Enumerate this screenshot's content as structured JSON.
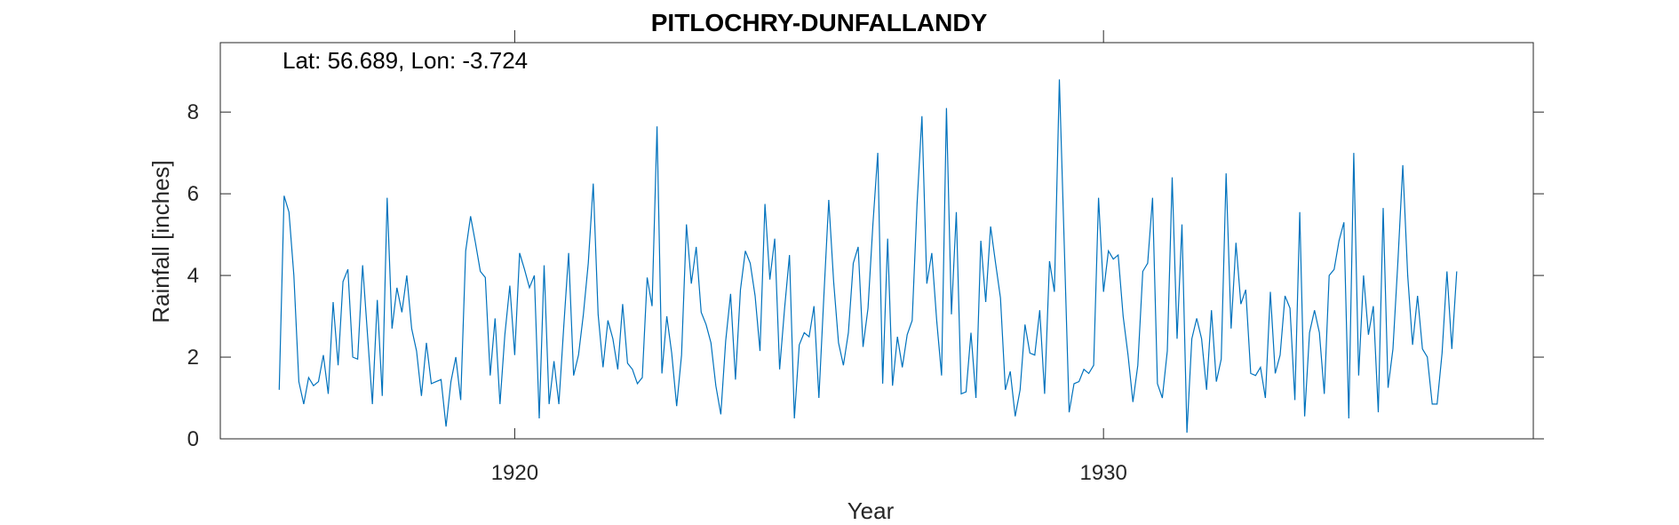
{
  "chart_data": {
    "type": "line",
    "title": "PITLOCHRY-DUNFALLANDY",
    "annotation": "Lat: 56.689, Lon: -3.724",
    "xlabel": "Year",
    "ylabel": "Rainfall [inches]",
    "xlim": [
      1915,
      1937.3
    ],
    "ylim": [
      0,
      9.7
    ],
    "x_ticks": [
      1920,
      1930
    ],
    "y_ticks": [
      0,
      2,
      4,
      6,
      8
    ],
    "x_start": "1916-01",
    "x_step_months": 1,
    "grid": false,
    "line_color": "#0072BD",
    "series": [
      {
        "values": [
          1.2,
          5.95,
          5.55,
          4.0,
          1.4,
          0.85,
          1.5,
          1.3,
          1.4,
          2.05,
          1.1,
          3.35,
          1.8,
          3.85,
          4.15,
          2.0,
          1.95,
          4.25,
          2.55,
          0.85,
          3.4,
          1.05,
          5.9,
          2.7,
          3.7,
          3.1,
          4.0,
          2.7,
          2.15,
          1.05,
          2.35,
          1.35,
          1.4,
          1.45,
          0.3,
          1.4,
          2.0,
          0.95,
          4.6,
          5.45,
          4.8,
          4.1,
          3.95,
          1.55,
          2.95,
          0.85,
          2.55,
          3.75,
          2.05,
          4.55,
          4.15,
          3.7,
          4.0,
          0.5,
          4.25,
          0.85,
          1.9,
          0.85,
          2.75,
          4.55,
          1.55,
          2.05,
          3.05,
          4.3,
          6.25,
          3.05,
          1.75,
          2.9,
          2.45,
          1.7,
          3.3,
          1.85,
          1.7,
          1.35,
          1.5,
          3.95,
          3.25,
          7.65,
          1.6,
          3.0,
          2.1,
          0.8,
          2.05,
          5.25,
          3.8,
          4.7,
          3.1,
          2.8,
          2.35,
          1.3,
          0.6,
          2.4,
          3.55,
          1.45,
          3.65,
          4.6,
          4.3,
          3.5,
          2.15,
          5.75,
          3.9,
          4.9,
          1.7,
          3.2,
          4.5,
          0.5,
          2.3,
          2.6,
          2.5,
          3.25,
          1.0,
          3.45,
          5.85,
          3.85,
          2.35,
          1.8,
          2.6,
          4.3,
          4.7,
          2.25,
          3.2,
          5.25,
          7.0,
          1.35,
          4.9,
          1.3,
          2.5,
          1.75,
          2.55,
          2.9,
          5.75,
          7.9,
          3.8,
          4.55,
          2.9,
          1.55,
          8.1,
          3.05,
          5.55,
          1.1,
          1.15,
          2.6,
          1.0,
          4.85,
          3.35,
          5.2,
          4.3,
          3.45,
          1.2,
          1.65,
          0.55,
          1.2,
          2.8,
          2.1,
          2.05,
          3.15,
          1.1,
          4.35,
          3.6,
          8.8,
          4.75,
          0.65,
          1.35,
          1.4,
          1.7,
          1.6,
          1.8,
          5.9,
          3.6,
          4.6,
          4.4,
          4.5,
          3.0,
          2.05,
          0.9,
          1.8,
          4.1,
          4.3,
          5.9,
          1.35,
          1.0,
          2.15,
          6.4,
          2.45,
          5.25,
          0.15,
          2.45,
          2.95,
          2.45,
          1.2,
          3.15,
          1.4,
          1.95,
          6.5,
          2.7,
          4.8,
          3.3,
          3.65,
          1.6,
          1.55,
          1.75,
          1.0,
          3.6,
          1.6,
          2.05,
          3.5,
          3.2,
          0.95,
          5.55,
          0.55,
          2.6,
          3.15,
          2.6,
          1.1,
          4.0,
          4.15,
          4.85,
          5.3,
          0.5,
          7.0,
          1.55,
          4.0,
          2.55,
          3.25,
          0.65,
          5.65,
          1.25,
          2.2,
          4.35,
          6.7,
          4.0,
          2.3,
          3.5,
          2.2,
          2.0,
          0.85,
          0.85,
          2.1,
          4.1,
          2.2,
          4.1
        ]
      }
    ]
  }
}
